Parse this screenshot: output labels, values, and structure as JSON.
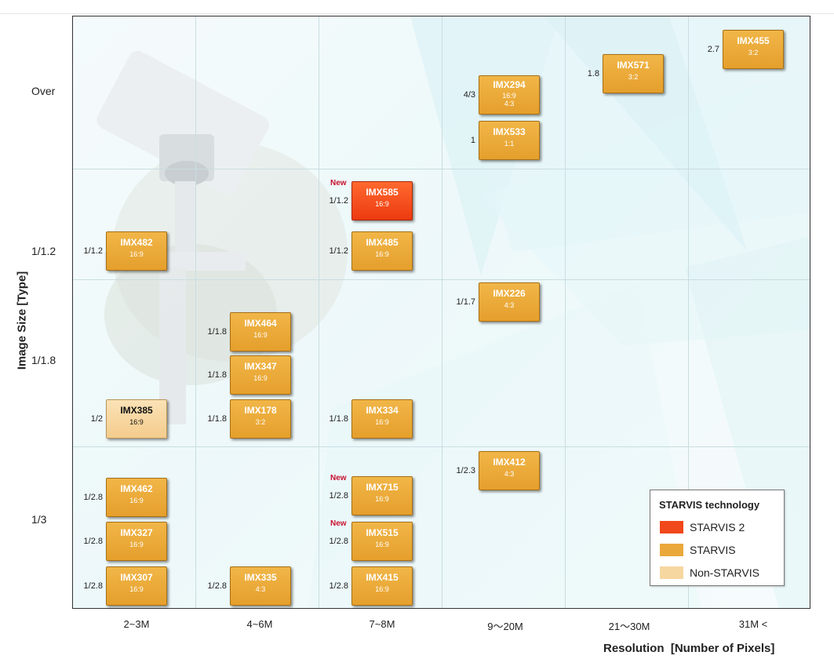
{
  "chart_data": {
    "type": "table",
    "xlabel": "Resolution  [Number of Pixels]",
    "ylabel": "Image Size [Type]",
    "x_categories": [
      "2~3M",
      "4~6M",
      "7~8M",
      "9〜20M",
      "21〜30M",
      "31M <"
    ],
    "y_categories": [
      "Over",
      "1/1.2",
      "1/1.8",
      "1/3"
    ],
    "legend": {
      "title": "STARVIS technology",
      "placement": "bottom-right",
      "items": [
        {
          "name": "STARVIS 2",
          "color": "#f0481a"
        },
        {
          "name": "STARVIS",
          "color": "#eba83a"
        },
        {
          "name": "Non-STARVIS",
          "color": "#f7d7a0"
        }
      ]
    },
    "sensors": [
      {
        "name": "IMX455",
        "aspect": "3:2",
        "size": "2.7",
        "resolution": "31M <",
        "tech": "STARVIS",
        "new": false
      },
      {
        "name": "IMX571",
        "aspect": "3:2",
        "size": "1.8",
        "resolution": "21〜30M",
        "tech": "STARVIS",
        "new": false
      },
      {
        "name": "IMX294",
        "aspect": "16:9",
        "aspect2": "4:3",
        "size": "4/3",
        "resolution": "9〜20M",
        "tech": "STARVIS",
        "new": false
      },
      {
        "name": "IMX533",
        "aspect": "1:1",
        "size": "1",
        "resolution": "9〜20M",
        "tech": "STARVIS",
        "new": false
      },
      {
        "name": "IMX585",
        "aspect": "16:9",
        "size": "1/1.2",
        "resolution": "7~8M",
        "tech": "STARVIS 2",
        "new": true
      },
      {
        "name": "IMX482",
        "aspect": "16:9",
        "size": "1/1.2",
        "resolution": "2~3M",
        "tech": "STARVIS",
        "new": false
      },
      {
        "name": "IMX485",
        "aspect": "16:9",
        "size": "1/1.2",
        "resolution": "7~8M",
        "tech": "STARVIS",
        "new": false
      },
      {
        "name": "IMX226",
        "aspect": "4:3",
        "size": "1/1.7",
        "resolution": "9〜20M",
        "tech": "STARVIS",
        "new": false
      },
      {
        "name": "IMX464",
        "aspect": "16:9",
        "size": "1/1.8",
        "resolution": "4~6M",
        "tech": "STARVIS",
        "new": false
      },
      {
        "name": "IMX347",
        "aspect": "16:9",
        "size": "1/1.8",
        "resolution": "4~6M",
        "tech": "STARVIS",
        "new": false
      },
      {
        "name": "IMX385",
        "aspect": "16:9",
        "size": "1/2",
        "resolution": "2~3M",
        "tech": "Non-STARVIS",
        "new": false
      },
      {
        "name": "IMX178",
        "aspect": "3:2",
        "size": "1/1.8",
        "resolution": "4~6M",
        "tech": "STARVIS",
        "new": false
      },
      {
        "name": "IMX334",
        "aspect": "16:9",
        "size": "1/1.8",
        "resolution": "7~8M",
        "tech": "STARVIS",
        "new": false
      },
      {
        "name": "IMX412",
        "aspect": "4:3",
        "size": "1/2.3",
        "resolution": "9〜20M",
        "tech": "STARVIS",
        "new": false
      },
      {
        "name": "IMX462",
        "aspect": "16:9",
        "size": "1/2.8",
        "resolution": "2~3M",
        "tech": "STARVIS",
        "new": false
      },
      {
        "name": "IMX715",
        "aspect": "16:9",
        "size": "1/2.8",
        "resolution": "7~8M",
        "tech": "STARVIS 2",
        "new": true
      },
      {
        "name": "IMX327",
        "aspect": "16:9",
        "size": "1/2.8",
        "resolution": "2~3M",
        "tech": "STARVIS",
        "new": false
      },
      {
        "name": "IMX515",
        "aspect": "16:9",
        "size": "1/2.8",
        "resolution": "7~8M",
        "tech": "STARVIS",
        "new": true
      },
      {
        "name": "IMX307",
        "aspect": "16:9",
        "size": "1/2.8",
        "resolution": "2~3M",
        "tech": "STARVIS",
        "new": false
      },
      {
        "name": "IMX335",
        "aspect": "4:3",
        "size": "1/2.8",
        "resolution": "4~6M",
        "tech": "STARVIS",
        "new": false
      },
      {
        "name": "IMX415",
        "aspect": "16:9",
        "size": "1/2.8",
        "resolution": "7~8M",
        "tech": "STARVIS",
        "new": false
      }
    ],
    "new_label": "New",
    "grid": true
  }
}
